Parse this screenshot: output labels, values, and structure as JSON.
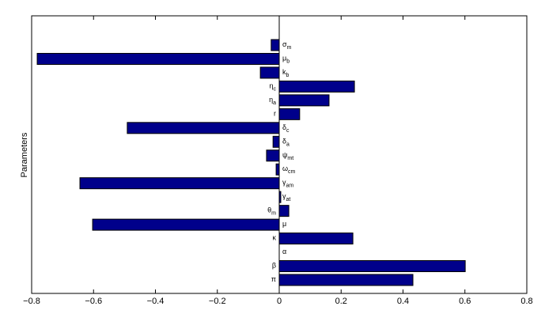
{
  "chart_data": {
    "type": "barh",
    "ylabel": "Parameters",
    "categories": [
      {
        "symbol": "σ",
        "subscript": "m"
      },
      {
        "symbol": "μ",
        "subscript": "b"
      },
      {
        "symbol": "k",
        "subscript": "b"
      },
      {
        "symbol": "η",
        "subscript": "c"
      },
      {
        "symbol": "η",
        "subscript": "a"
      },
      {
        "symbol": "r"
      },
      {
        "symbol": "δ",
        "subscript": "c"
      },
      {
        "symbol": "δ",
        "subscript": "a"
      },
      {
        "symbol": "ψ",
        "subscript": "mt"
      },
      {
        "symbol": "ω",
        "subscript": "cm"
      },
      {
        "symbol": "γ",
        "subscript": "am"
      },
      {
        "symbol": "γ",
        "subscript": "at"
      },
      {
        "symbol": "θ",
        "subscript": "m"
      },
      {
        "symbol": "μ"
      },
      {
        "symbol": "κ"
      },
      {
        "symbol": "α"
      },
      {
        "symbol": "β"
      },
      {
        "symbol": "π"
      }
    ],
    "values": [
      -0.026,
      -0.782,
      -0.061,
      0.243,
      0.161,
      0.066,
      -0.491,
      -0.02,
      -0.041,
      -0.01,
      -0.644,
      0.005,
      0.031,
      -0.603,
      0.238,
      0.0,
      0.601,
      0.432
    ],
    "color": "#00008b",
    "xlim": [
      -0.8,
      0.8
    ],
    "xticks": [
      {
        "value": -0.8,
        "label": "−0.8"
      },
      {
        "value": -0.6,
        "label": "−0.6"
      },
      {
        "value": -0.4,
        "label": "−0.4"
      },
      {
        "value": -0.2,
        "label": "−0.2"
      },
      0,
      0.2,
      0.4,
      0.6,
      0.8
    ]
  }
}
